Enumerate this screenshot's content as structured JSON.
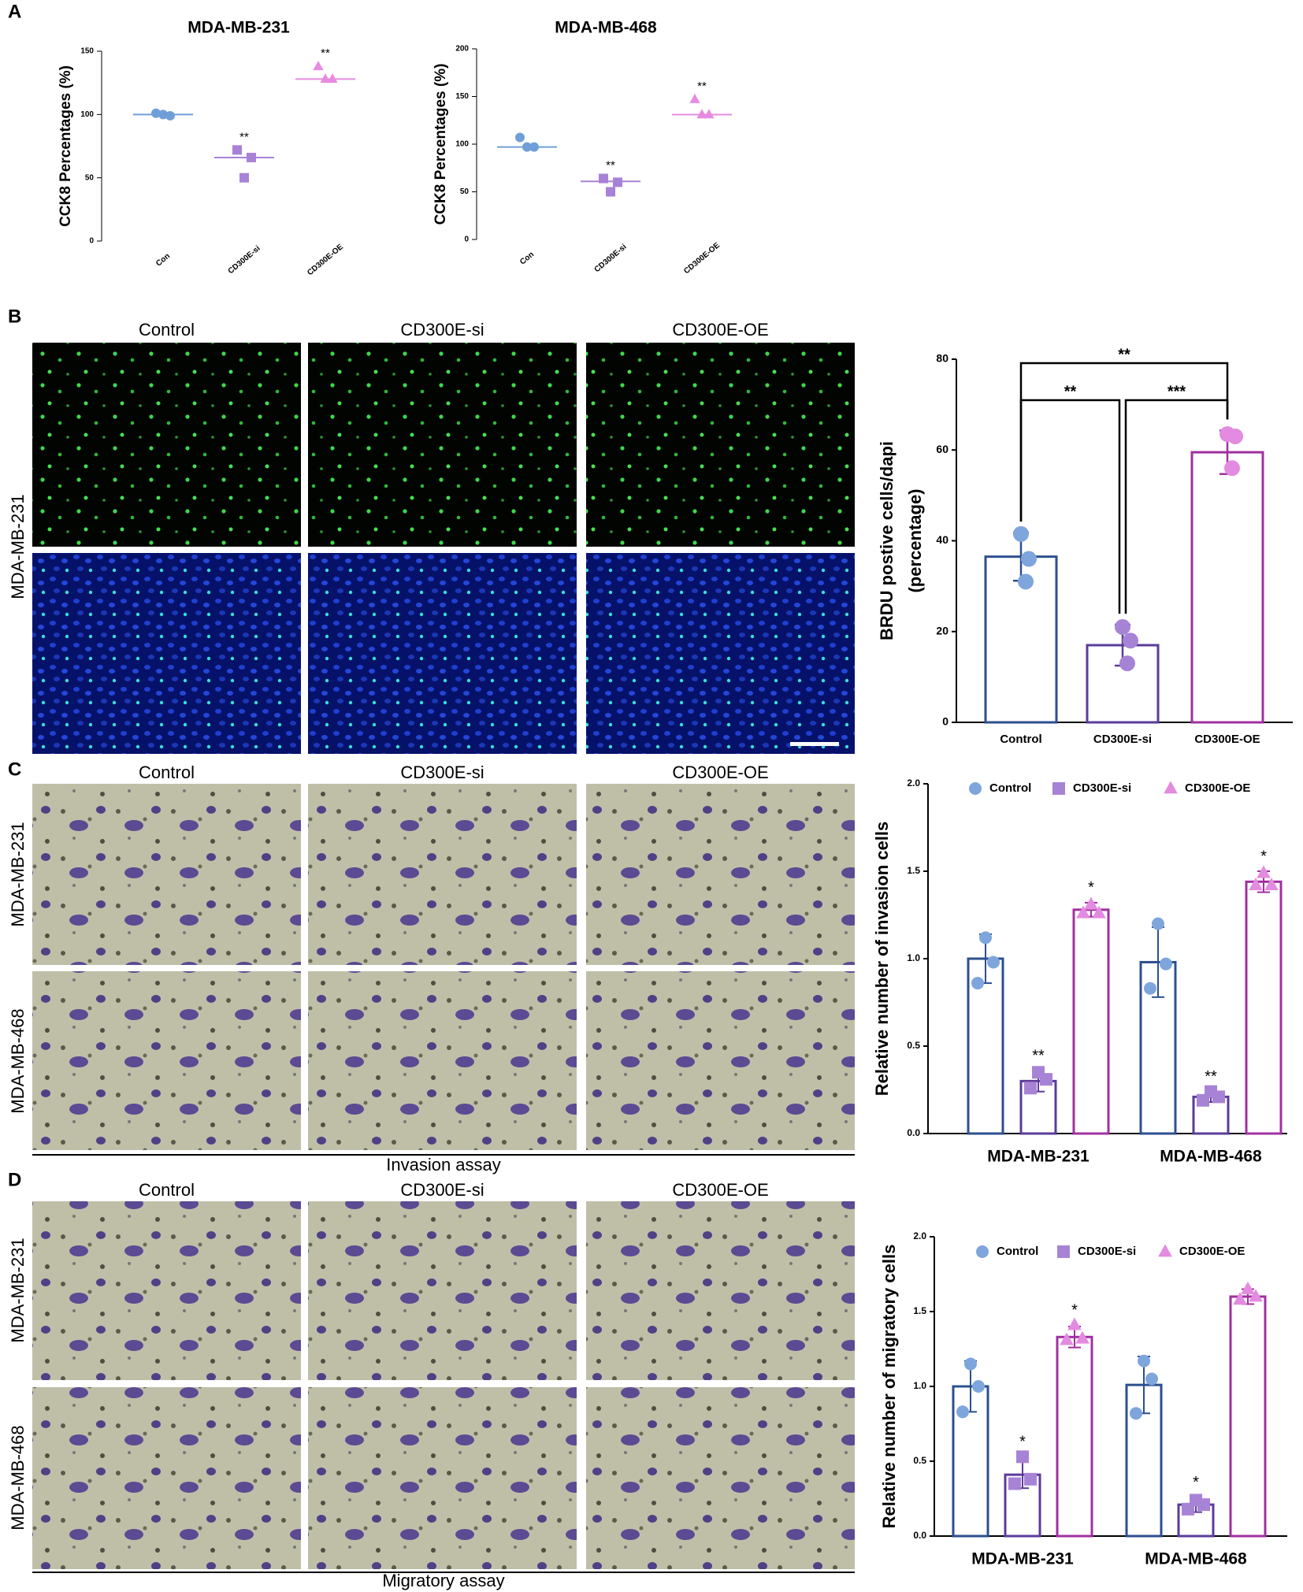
{
  "panel_labels": [
    "A",
    "B",
    "C",
    "D"
  ],
  "micrographs": [
    {
      "columns": [
        "Control",
        "CD300E-si",
        "CD300E-OE"
      ],
      "rows": [
        "MDA-MB-231"
      ]
    },
    {
      "columns": [
        "Control",
        "CD300E-si",
        "CD300E-OE"
      ],
      "rows": [
        "MDA-MB-231",
        "MDA-MB-468"
      ],
      "caption": "Invasion assay"
    },
    {
      "columns": [
        "Control",
        "CD300E-si",
        "CD300E-OE"
      ],
      "rows": [
        "MDA-MB-231",
        "MDA-MB-468"
      ],
      "caption": "Migratory assay"
    }
  ],
  "chart_data": [
    {
      "type": "dot",
      "title": "MDA-MB-231",
      "ylabel": "CCK8 Percentages (%)",
      "categories": [
        "Con",
        "CD300E-si",
        "CD300E-OE"
      ],
      "values": [
        100,
        66,
        128
      ],
      "points": [
        [
          101,
          99,
          100
        ],
        [
          72,
          66,
          50
        ],
        [
          138,
          128,
          128
        ]
      ],
      "annotations": [
        null,
        "**",
        "**"
      ],
      "colors": [
        "#6f9fd8",
        "#a882d6",
        "#e78be0"
      ],
      "markers": [
        "circle",
        "square",
        "triangle"
      ],
      "ylim": [
        0,
        150
      ],
      "yticks": [
        0,
        50,
        100,
        150
      ]
    },
    {
      "type": "dot",
      "title": "MDA-MB-468",
      "ylabel": "CCK8 Percentages (%)",
      "categories": [
        "Con",
        "CD300E-si",
        "CD300E-OE"
      ],
      "values": [
        97,
        61,
        131
      ],
      "points": [
        [
          107,
          97,
          97
        ],
        [
          64,
          60,
          50
        ],
        [
          147,
          131,
          131
        ]
      ],
      "annotations": [
        null,
        "**",
        "**"
      ],
      "colors": [
        "#6f9fd8",
        "#a882d6",
        "#e78be0"
      ],
      "markers": [
        "circle",
        "square",
        "triangle"
      ],
      "ylim": [
        0,
        200
      ],
      "yticks": [
        0,
        50,
        100,
        150,
        200
      ]
    },
    {
      "type": "bar",
      "ylabel": [
        "BRDU postive cells/dapi",
        "(percentage)"
      ],
      "categories": [
        "Control",
        "CD300E-si",
        "CD300E-OE"
      ],
      "values": [
        36.5,
        17,
        59.5
      ],
      "errors": [
        5.3,
        4.5,
        4.8
      ],
      "points": [
        [
          41.5,
          36,
          31
        ],
        [
          21,
          18,
          13
        ],
        [
          63.5,
          63,
          56
        ]
      ],
      "colors": [
        "#2c4f8f",
        "#5b3b9a",
        "#a030a0"
      ],
      "point_colors": [
        "#7ea6dc",
        "#a783d6",
        "#e38be0"
      ],
      "brackets": [
        {
          "from": 0,
          "to": 2,
          "text": "**"
        },
        {
          "from": 0,
          "to": 1,
          "text": "**"
        },
        {
          "from": 1,
          "to": 2,
          "text": "***"
        }
      ],
      "ylim": [
        0,
        80
      ],
      "yticks": [
        0,
        20,
        40,
        60,
        80
      ]
    },
    {
      "type": "grouped_bar",
      "ylabel": "Relative number of invasion cells",
      "categories": [
        "MDA-MB-231",
        "MDA-MB-468"
      ],
      "series": [
        {
          "name": "Control",
          "color": "#2c4f8f",
          "point_color": "#7ea6dc",
          "marker": "circle",
          "values": [
            1.0,
            0.98
          ],
          "errors": [
            0.14,
            0.2
          ],
          "points": [
            [
              1.12,
              0.98,
              0.86
            ],
            [
              1.2,
              0.97,
              0.83
            ]
          ],
          "annotations": [
            null,
            null
          ]
        },
        {
          "name": "CD300E-si",
          "color": "#5b3b9a",
          "point_color": "#a783d6",
          "marker": "square",
          "values": [
            0.3,
            0.21
          ],
          "errors": [
            0.06,
            0.03
          ],
          "points": [
            [
              0.35,
              0.31,
              0.26
            ],
            [
              0.24,
              0.21,
              0.19
            ]
          ],
          "annotations": [
            "**",
            "**"
          ]
        },
        {
          "name": "CD300E-OE",
          "color": "#a030a0",
          "point_color": "#e38be0",
          "marker": "triangle",
          "values": [
            1.28,
            1.44
          ],
          "errors": [
            0.04,
            0.06
          ],
          "points": [
            [
              1.31,
              1.26,
              1.26
            ],
            [
              1.49,
              1.42,
              1.42
            ]
          ],
          "annotations": [
            "*",
            "*"
          ]
        }
      ],
      "ylim": [
        0,
        2.0
      ],
      "yticks": [
        {
          "value": 0,
          "label": "0.0"
        },
        0.5,
        {
          "value": 1,
          "label": "1.0"
        },
        1.5,
        {
          "value": 2,
          "label": "2.0"
        }
      ]
    },
    {
      "type": "grouped_bar",
      "ylabel": "Relative number of migratory cells",
      "categories": [
        "MDA-MB-231",
        "MDA-MB-468"
      ],
      "series": [
        {
          "name": "Control",
          "color": "#2c4f8f",
          "point_color": "#7ea6dc",
          "marker": "circle",
          "values": [
            1.0,
            1.01
          ],
          "errors": [
            0.17,
            0.19
          ],
          "points": [
            [
              1.15,
              1.0,
              0.83
            ],
            [
              1.17,
              1.05,
              0.82
            ]
          ],
          "annotations": [
            null,
            null
          ]
        },
        {
          "name": "CD300E-si",
          "color": "#5b3b9a",
          "point_color": "#a783d6",
          "marker": "square",
          "values": [
            0.41,
            0.21
          ],
          "errors": [
            0.09,
            0.05
          ],
          "points": [
            [
              0.53,
              0.38,
              0.35
            ],
            [
              0.24,
              0.21,
              0.18
            ]
          ],
          "annotations": [
            "*",
            "*"
          ]
        },
        {
          "name": "CD300E-OE",
          "color": "#a030a0",
          "point_color": "#e38be0",
          "marker": "triangle",
          "values": [
            1.33,
            1.6
          ],
          "errors": [
            0.07,
            0.05
          ],
          "points": [
            [
              1.41,
              1.32,
              1.31
            ],
            [
              1.65,
              1.6,
              1.58
            ]
          ],
          "annotations": [
            "*",
            null
          ]
        }
      ],
      "ylim": [
        0,
        2.0
      ],
      "yticks": [
        {
          "value": 0,
          "label": "0.0"
        },
        0.5,
        {
          "value": 1,
          "label": "1.0"
        },
        1.5,
        {
          "value": 2,
          "label": "2.0"
        }
      ]
    }
  ]
}
